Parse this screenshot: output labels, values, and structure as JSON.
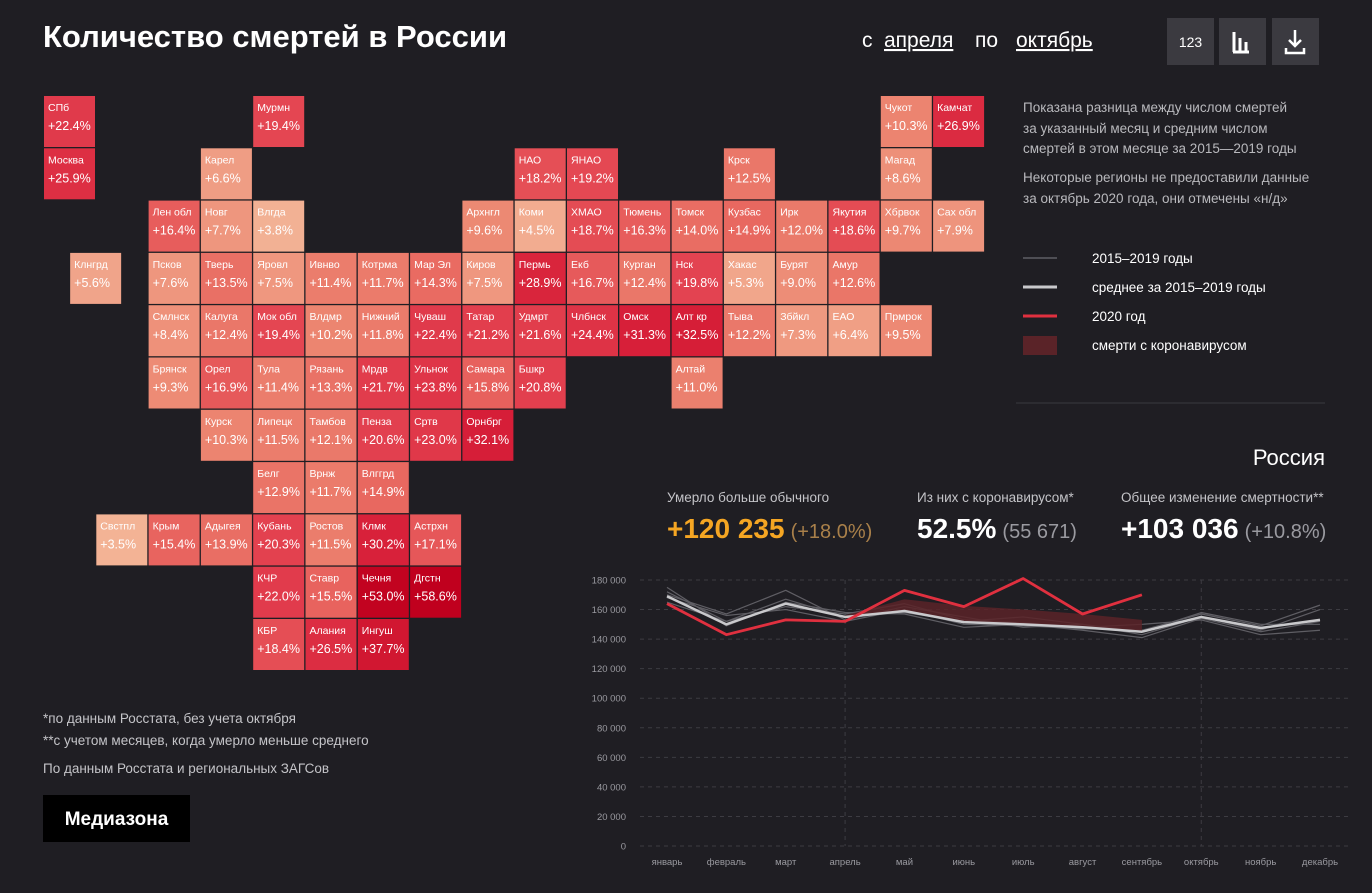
{
  "header": {
    "title": "Количество смертей в России",
    "period": {
      "from_prefix": "с",
      "from": "апреля",
      "to_prefix": "по",
      "to": "октябрь"
    },
    "view_button": "123"
  },
  "tiles": [
    {
      "name": "СПб",
      "value": 22.4,
      "value_label": "+22.4%"
    },
    {
      "name": "Мурмн",
      "value": 19.4,
      "value_label": "+19.4%"
    },
    {
      "name": "Чукот",
      "value": 10.3,
      "value_label": "+10.3%"
    },
    {
      "name": "Камчат",
      "value": 26.9,
      "value_label": "+26.9%"
    },
    {
      "name": "Москва",
      "value": 25.9,
      "value_label": "+25.9%"
    },
    {
      "name": "Карел",
      "value": 6.6,
      "value_label": "+6.6%"
    },
    {
      "name": "НАО",
      "value": 18.2,
      "value_label": "+18.2%"
    },
    {
      "name": "ЯНАО",
      "value": 19.2,
      "value_label": "+19.2%"
    },
    {
      "name": "Крск",
      "value": 12.5,
      "value_label": "+12.5%"
    },
    {
      "name": "Магад",
      "value": 8.6,
      "value_label": "+8.6%"
    },
    {
      "name": "Лен обл",
      "value": 16.4,
      "value_label": "+16.4%"
    },
    {
      "name": "Новг",
      "value": 7.7,
      "value_label": "+7.7%"
    },
    {
      "name": "Влгда",
      "value": 3.8,
      "value_label": "+3.8%"
    },
    {
      "name": "Архнгл",
      "value": 9.6,
      "value_label": "+9.6%"
    },
    {
      "name": "Коми",
      "value": 4.5,
      "value_label": "+4.5%"
    },
    {
      "name": "ХМАО",
      "value": 18.7,
      "value_label": "+18.7%"
    },
    {
      "name": "Тюмень",
      "value": 16.3,
      "value_label": "+16.3%"
    },
    {
      "name": "Томск",
      "value": 14.0,
      "value_label": "+14.0%"
    },
    {
      "name": "Кузбас",
      "value": 14.9,
      "value_label": "+14.9%"
    },
    {
      "name": "Ирк",
      "value": 12.0,
      "value_label": "+12.0%"
    },
    {
      "name": "Якутия",
      "value": 18.6,
      "value_label": "+18.6%"
    },
    {
      "name": "Хбрвок",
      "value": 9.7,
      "value_label": "+9.7%"
    },
    {
      "name": "Сах обл",
      "value": 7.9,
      "value_label": "+7.9%"
    },
    {
      "name": "Клнгрд",
      "value": 5.6,
      "value_label": "+5.6%"
    },
    {
      "name": "Псков",
      "value": 7.6,
      "value_label": "+7.6%"
    },
    {
      "name": "Тверь",
      "value": 13.5,
      "value_label": "+13.5%"
    },
    {
      "name": "Яровл",
      "value": 7.5,
      "value_label": "+7.5%"
    },
    {
      "name": "Ивнво",
      "value": 11.4,
      "value_label": "+11.4%"
    },
    {
      "name": "Котрма",
      "value": 11.7,
      "value_label": "+11.7%"
    },
    {
      "name": "Мар Эл",
      "value": 14.3,
      "value_label": "+14.3%"
    },
    {
      "name": "Киров",
      "value": 7.5,
      "value_label": "+7.5%"
    },
    {
      "name": "Пермь",
      "value": 28.9,
      "value_label": "+28.9%"
    },
    {
      "name": "Екб",
      "value": 16.7,
      "value_label": "+16.7%"
    },
    {
      "name": "Курган",
      "value": 12.4,
      "value_label": "+12.4%"
    },
    {
      "name": "Нск",
      "value": 19.8,
      "value_label": "+19.8%"
    },
    {
      "name": "Хакас",
      "value": 5.3,
      "value_label": "+5.3%"
    },
    {
      "name": "Бурят",
      "value": 9.0,
      "value_label": "+9.0%"
    },
    {
      "name": "Амур",
      "value": 12.6,
      "value_label": "+12.6%"
    },
    {
      "name": "Смлнск",
      "value": 8.4,
      "value_label": "+8.4%"
    },
    {
      "name": "Калуга",
      "value": 12.4,
      "value_label": "+12.4%"
    },
    {
      "name": "Мок обл",
      "value": 19.4,
      "value_label": "+19.4%"
    },
    {
      "name": "Влдмр",
      "value": 10.2,
      "value_label": "+10.2%"
    },
    {
      "name": "Нижний",
      "value": 11.8,
      "value_label": "+11.8%"
    },
    {
      "name": "Чуваш",
      "value": 22.4,
      "value_label": "+22.4%"
    },
    {
      "name": "Татар",
      "value": 21.2,
      "value_label": "+21.2%"
    },
    {
      "name": "Удмрт",
      "value": 21.6,
      "value_label": "+21.6%"
    },
    {
      "name": "Члбнск",
      "value": 24.4,
      "value_label": "+24.4%"
    },
    {
      "name": "Омск",
      "value": 31.3,
      "value_label": "+31.3%"
    },
    {
      "name": "Алт кр",
      "value": 32.5,
      "value_label": "+32.5%"
    },
    {
      "name": "Тыва",
      "value": 12.2,
      "value_label": "+12.2%"
    },
    {
      "name": "Збйкл",
      "value": 7.3,
      "value_label": "+7.3%"
    },
    {
      "name": "ЕАО",
      "value": 6.4,
      "value_label": "+6.4%"
    },
    {
      "name": "Прмрок",
      "value": 9.5,
      "value_label": "+9.5%"
    },
    {
      "name": "Брянск",
      "value": 9.3,
      "value_label": "+9.3%"
    },
    {
      "name": "Орел",
      "value": 16.9,
      "value_label": "+16.9%"
    },
    {
      "name": "Тула",
      "value": 11.4,
      "value_label": "+11.4%"
    },
    {
      "name": "Рязань",
      "value": 13.3,
      "value_label": "+13.3%"
    },
    {
      "name": "Мрдв",
      "value": 21.7,
      "value_label": "+21.7%"
    },
    {
      "name": "Ульнок",
      "value": 23.8,
      "value_label": "+23.8%"
    },
    {
      "name": "Самара",
      "value": 15.8,
      "value_label": "+15.8%"
    },
    {
      "name": "Бшкр",
      "value": 20.8,
      "value_label": "+20.8%"
    },
    {
      "name": "Алтай",
      "value": 11.0,
      "value_label": "+11.0%"
    },
    {
      "name": "Курск",
      "value": 10.3,
      "value_label": "+10.3%"
    },
    {
      "name": "Липецк",
      "value": 11.5,
      "value_label": "+11.5%"
    },
    {
      "name": "Тамбов",
      "value": 12.1,
      "value_label": "+12.1%"
    },
    {
      "name": "Пенза",
      "value": 20.6,
      "value_label": "+20.6%"
    },
    {
      "name": "Сртв",
      "value": 23.0,
      "value_label": "+23.0%"
    },
    {
      "name": "Орнбрг",
      "value": 32.1,
      "value_label": "+32.1%"
    },
    {
      "name": "Белг",
      "value": 12.9,
      "value_label": "+12.9%"
    },
    {
      "name": "Врнж",
      "value": 11.7,
      "value_label": "+11.7%"
    },
    {
      "name": "Влггрд",
      "value": 14.9,
      "value_label": "+14.9%"
    },
    {
      "name": "Свстпл",
      "value": 3.5,
      "value_label": "+3.5%"
    },
    {
      "name": "Крым",
      "value": 15.4,
      "value_label": "+15.4%"
    },
    {
      "name": "Адыгея",
      "value": 13.9,
      "value_label": "+13.9%"
    },
    {
      "name": "Кубань",
      "value": 20.3,
      "value_label": "+20.3%"
    },
    {
      "name": "Ростов",
      "value": 11.5,
      "value_label": "+11.5%"
    },
    {
      "name": "Клмк",
      "value": 30.2,
      "value_label": "+30.2%"
    },
    {
      "name": "Астрхн",
      "value": 17.1,
      "value_label": "+17.1%"
    },
    {
      "name": "КЧР",
      "value": 22.0,
      "value_label": "+22.0%"
    },
    {
      "name": "Ставр",
      "value": 15.5,
      "value_label": "+15.5%"
    },
    {
      "name": "Чечня",
      "value": 53.0,
      "value_label": "+53.0%"
    },
    {
      "name": "Дгстн",
      "value": 58.6,
      "value_label": "+58.6%"
    },
    {
      "name": "КБР",
      "value": 18.4,
      "value_label": "+18.4%"
    },
    {
      "name": "Алания",
      "value": 26.5,
      "value_label": "+26.5%"
    },
    {
      "name": "Ингуш",
      "value": 37.7,
      "value_label": "+37.7%"
    }
  ],
  "notes": {
    "description": [
      "Показана разница между числом смертей",
      "за указанный месяц и средним числом",
      "смертей в этом месяце за 2015—2019 годы"
    ],
    "missing": [
      "Некоторые регионы не предоставили данные",
      "за октябрь 2020 года, они отмечены «н/д»"
    ]
  },
  "summary": {
    "region": "Россия",
    "stats": [
      {
        "label": "Умерло больше обычного",
        "value": "+120 235",
        "note": "(+18.0%)"
      },
      {
        "label": "Из них с коронавирусом*",
        "value": "52.5%",
        "note": "(55 671)"
      },
      {
        "label": "Общее изменение смертности**",
        "value": "+103 036",
        "note": "(+10.8%)"
      }
    ]
  },
  "chart_data": {
    "type": "line",
    "categories": [
      "январь",
      "февраль",
      "март",
      "апрель",
      "май",
      "июнь",
      "июль",
      "август",
      "сентябрь",
      "октябрь",
      "ноябрь",
      "декабрь"
    ],
    "ylim": [
      0,
      180000
    ],
    "yticks": [
      0,
      {
        "value": 20000,
        "label": "20 000"
      },
      {
        "value": 40000,
        "label": "40 000"
      },
      {
        "value": 60000,
        "label": "60 000"
      },
      {
        "value": 80000,
        "label": "80 000"
      },
      {
        "value": 100000,
        "label": "100 000"
      },
      {
        "value": 120000,
        "label": "120 000"
      },
      {
        "value": 140000,
        "label": "140 000"
      },
      {
        "value": 160000,
        "label": "160 000"
      },
      {
        "value": 180000,
        "label": "180 000"
      }
    ],
    "grid": true,
    "series": [
      {
        "name": "2015–2019 годы",
        "color": "#5f5e64",
        "lines": [
          [
            172000,
            152000,
            167000,
            155000,
            158000,
            152000,
            155000,
            150000,
            143000,
            155000,
            146000,
            160000
          ],
          [
            168000,
            156000,
            160000,
            152000,
            160000,
            150000,
            149000,
            147000,
            146000,
            157000,
            149000,
            163000
          ],
          [
            175000,
            149000,
            165000,
            158000,
            157000,
            148000,
            150000,
            146000,
            141000,
            154000,
            145000,
            152000
          ],
          [
            170000,
            157000,
            173000,
            153000,
            162000,
            155000,
            148000,
            150000,
            145000,
            158000,
            150000,
            150000
          ],
          [
            165000,
            152000,
            162000,
            157000,
            164000,
            153000,
            151000,
            148000,
            150000,
            153000,
            143000,
            146000
          ]
        ]
      },
      {
        "name": "среднее за 2015–2019 годы",
        "color": "#c9c9cc",
        "values": [
          169000,
          150000,
          164000,
          155000,
          159000,
          151500,
          150000,
          148000,
          145000,
          155000,
          147500,
          153000
        ]
      },
      {
        "name": "2020 год",
        "color": "#e0303f",
        "values": [
          164000,
          143000,
          153000,
          152000,
          173000,
          162000,
          181000,
          157000,
          170000,
          null,
          null,
          null
        ]
      },
      {
        "name": "смерти с коронавирусом",
        "color": "#5a2328",
        "type": "area",
        "values": [
          null,
          null,
          null,
          1000,
          8000,
          11000,
          10000,
          9000,
          8000,
          null,
          null,
          null
        ]
      }
    ]
  },
  "footnotes": [
    "*по данным Росстата, без учета октября",
    "**с учетом месяцев, когда умерло меньше среднего"
  ],
  "source": "По данным Росстата и региональных ЗАГСов",
  "logo": "Медиазона"
}
